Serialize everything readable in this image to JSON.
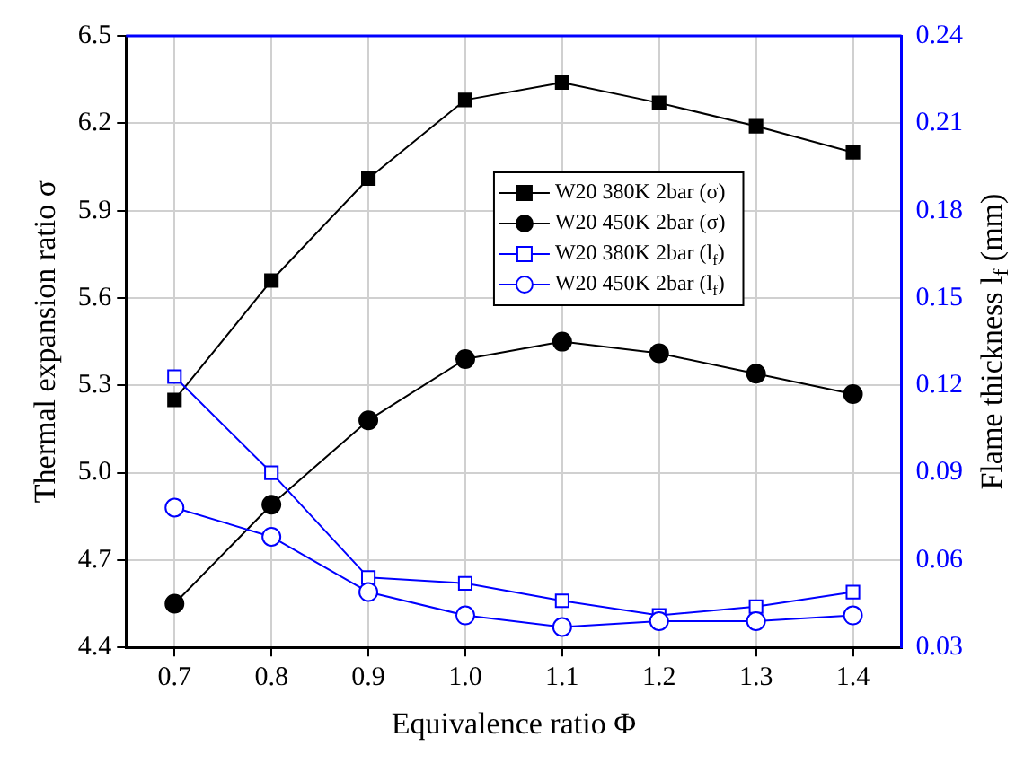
{
  "chart_data": {
    "type": "line",
    "xlabel": "Equivalence ratio Φ",
    "ylabel": "Thermal expansion ratio σ",
    "y2label": "Flame thickness l$_{f}$ (mm)",
    "x": [
      0.7,
      0.8,
      0.9,
      1.0,
      1.1,
      1.2,
      1.3,
      1.4
    ],
    "series": [
      {
        "name": "W20 380K 2bar (σ)",
        "color": "#000000",
        "marker": "square",
        "values": [
          5.25,
          5.66,
          6.01,
          6.28,
          6.34,
          6.27,
          6.19,
          6.1
        ]
      },
      {
        "name": "W20 450K 2bar (σ)",
        "color": "#000000",
        "marker": "circle",
        "values": [
          4.55,
          4.89,
          5.18,
          5.39,
          5.45,
          5.41,
          5.34,
          5.27
        ]
      },
      {
        "name": "W20 380K 2bar (l$_{f}$)",
        "color": "#0000ff",
        "marker": "square",
        "axis": "y2",
        "values": [
          0.123,
          0.09,
          0.054,
          0.052,
          0.046,
          0.041,
          0.044,
          0.049
        ]
      },
      {
        "name": "W20 450K 2bar (l$_{f}$)",
        "color": "#0000ff",
        "marker": "circle",
        "axis": "y2",
        "values": [
          0.078,
          0.068,
          0.049,
          0.041,
          0.037,
          0.039,
          0.039,
          0.041
        ]
      }
    ],
    "xlim": [
      0.65,
      1.45
    ],
    "xticks": [
      {
        "value": 0.7,
        "label": "0.7"
      },
      {
        "value": 0.8,
        "label": "0.8"
      },
      {
        "value": 0.9,
        "label": "0.9"
      },
      {
        "value": 1.0,
        "label": "1.0"
      },
      {
        "value": 1.1,
        "label": "1.1"
      },
      {
        "value": 1.2,
        "label": "1.2"
      },
      {
        "value": 1.3,
        "label": "1.3"
      },
      {
        "value": 1.4,
        "label": "1.4"
      }
    ],
    "ylim": [
      4.4,
      6.5
    ],
    "yticks": [
      4.4,
      4.7,
      {
        "value": 5.0,
        "label": "5.0"
      },
      5.3,
      5.6,
      5.9,
      6.2,
      6.5
    ],
    "y2lim": [
      0.03,
      0.24
    ],
    "y2ticks": [
      0.03,
      0.06,
      0.09,
      0.12,
      0.15,
      0.18,
      0.21,
      0.24
    ],
    "grid": true,
    "legend": "top right",
    "line_style": "solid"
  }
}
